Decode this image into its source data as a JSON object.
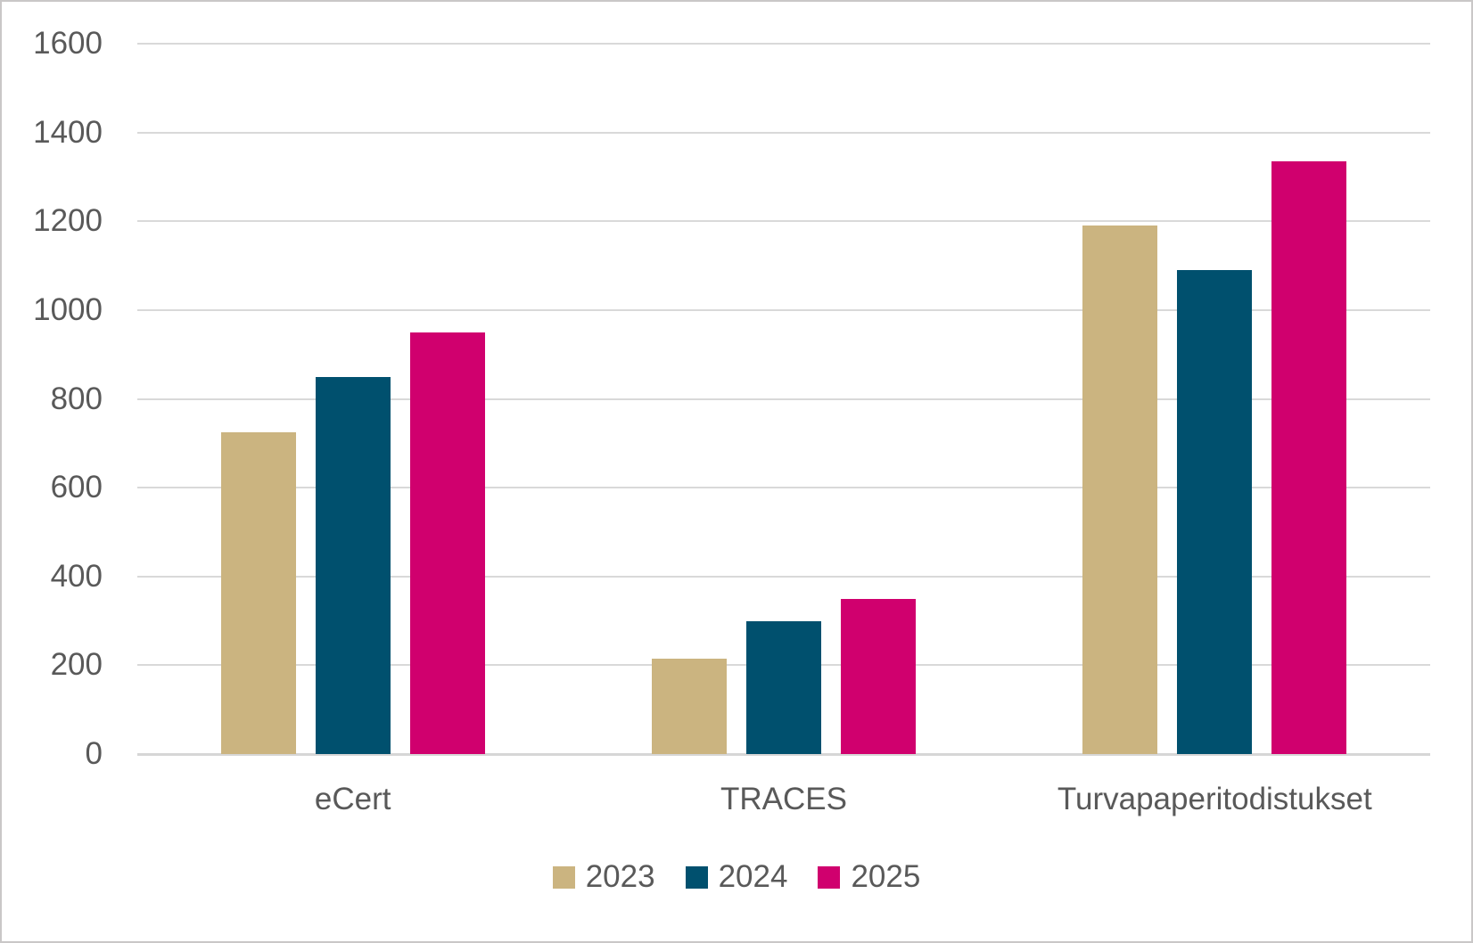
{
  "figure": {
    "background": "#FFFFFF",
    "border_color": "#C9C7C7"
  },
  "chart_data": {
    "type": "bar",
    "title": "",
    "categories": [
      "eCert",
      "TRACES",
      "Turvapaperitodistukset"
    ],
    "series": [
      {
        "name": "2023",
        "color": "#CBB480",
        "values": [
          725,
          215,
          1190
        ]
      },
      {
        "name": "2024",
        "color": "#00506E",
        "values": [
          850,
          300,
          1090
        ]
      },
      {
        "name": "2025",
        "color": "#D0006E",
        "values": [
          950,
          350,
          1335
        ]
      }
    ],
    "ylim": [
      0,
      1600
    ],
    "ytick_interval": 200,
    "ytick_labels": [
      "0",
      "200",
      "400",
      "600",
      "800",
      "1000",
      "1200",
      "1400",
      "1600"
    ],
    "grid": "horizontal-only",
    "legend_position": "bottom-center",
    "colors": {
      "axis_text": "#595959",
      "gridline": "#D9D9D9",
      "axis_line": "#D6D6D6"
    }
  }
}
